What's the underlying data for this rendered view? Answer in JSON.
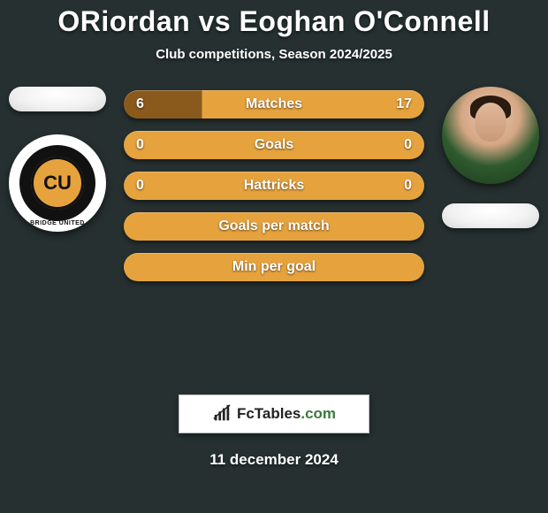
{
  "background_color": "#263030",
  "title": {
    "text": "ORiordan vs Eoghan O'Connell",
    "fontsize": 32,
    "color": "#ffffff"
  },
  "subtitle": {
    "text": "Club competitions, Season 2024/2025",
    "fontsize": 15,
    "color": "#ffffff"
  },
  "left": {
    "pill_color": "#f0f0f0",
    "badge": {
      "type": "club",
      "initials": "CU",
      "arc_text": "BRIDGE UNITED",
      "accent": "#e6a23c"
    }
  },
  "right": {
    "pill_color": "#f0f0f0",
    "badge": {
      "type": "player"
    }
  },
  "bars": {
    "label_fontsize": 16,
    "value_fontsize": 16,
    "height": 32,
    "gap": 14,
    "solid_color": "#e6a23c",
    "left_segment_color": "#8a5a1c",
    "right_segment_color": "#e6a23c",
    "items": [
      {
        "label": "Matches",
        "left": "6",
        "right": "17",
        "left_pct": 26,
        "show_values": true
      },
      {
        "label": "Goals",
        "left": "0",
        "right": "0",
        "left_pct": 0,
        "show_values": true
      },
      {
        "label": "Hattricks",
        "left": "0",
        "right": "0",
        "left_pct": 0,
        "show_values": true
      },
      {
        "label": "Goals per match",
        "left": "",
        "right": "",
        "left_pct": 0,
        "show_values": false
      },
      {
        "label": "Min per goal",
        "left": "",
        "right": "",
        "left_pct": 0,
        "show_values": false
      }
    ]
  },
  "brand": {
    "name": "FcTables",
    "domain": ".com"
  },
  "date": {
    "text": "11 december 2024",
    "fontsize": 17
  }
}
